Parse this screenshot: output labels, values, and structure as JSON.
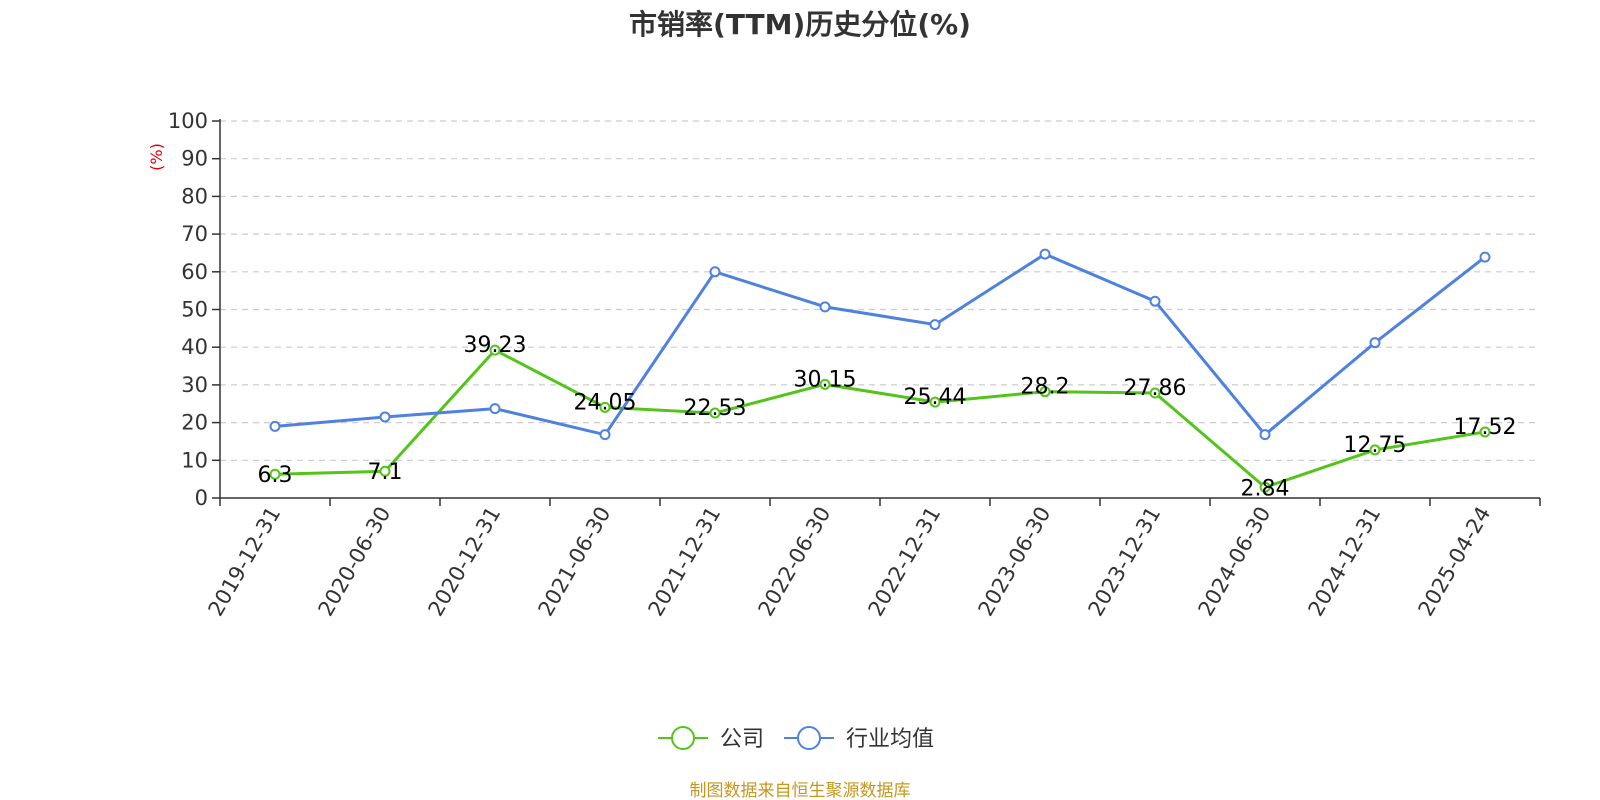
{
  "chart_data": {
    "type": "line",
    "title": "市销率(TTM)历史分位(%)",
    "ylabel": "(%)",
    "xlabel": "",
    "ylim": [
      0,
      100
    ],
    "yticks": [
      0,
      10,
      20,
      30,
      40,
      50,
      60,
      70,
      80,
      90,
      100
    ],
    "grid": true,
    "legend_position": "bottom",
    "categories": [
      "2019-12-31",
      "2020-06-30",
      "2020-12-31",
      "2021-06-30",
      "2021-12-31",
      "2022-06-30",
      "2022-12-31",
      "2023-06-30",
      "2023-12-31",
      "2024-06-30",
      "2024-12-31",
      "2025-04-24"
    ],
    "series": [
      {
        "name": "公司",
        "color": "#52c41a",
        "values": [
          6.3,
          7.1,
          39.23,
          24.05,
          22.53,
          30.15,
          25.44,
          28.2,
          27.86,
          2.84,
          12.75,
          17.52
        ],
        "labels": [
          "6.3",
          "7.1",
          "39.23",
          "24.05",
          "22.53",
          "30.15",
          "25.44",
          "28.2",
          "27.86",
          "2.84",
          "12.75",
          "17.52"
        ],
        "show_labels": true
      },
      {
        "name": "行业均值",
        "color": "#4f81e0",
        "values": [
          19.0,
          21.5,
          23.7,
          16.8,
          60.0,
          50.7,
          46.0,
          64.7,
          52.2,
          16.8,
          41.2,
          63.9
        ],
        "show_labels": false
      }
    ]
  },
  "source": "制图数据来自恒生聚源数据库"
}
